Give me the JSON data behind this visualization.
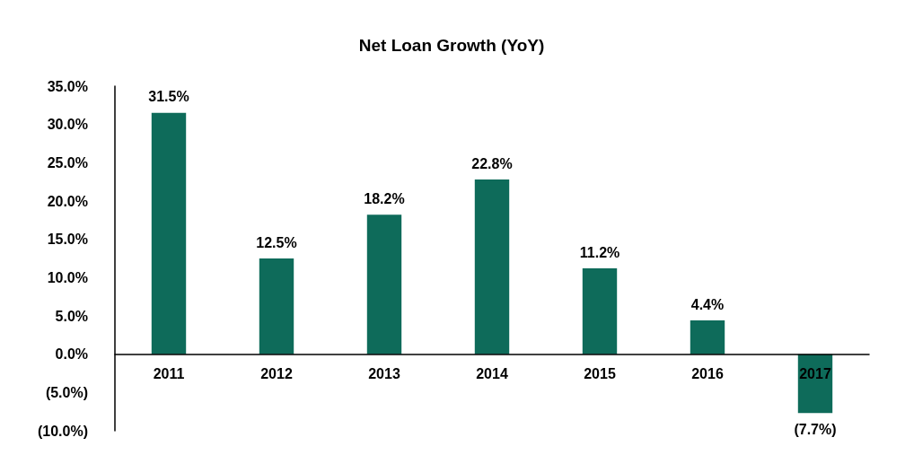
{
  "chart_data": {
    "type": "bar",
    "title": "Net Loan Growth (YoY)",
    "categories": [
      "2011",
      "2012",
      "2013",
      "2014",
      "2015",
      "2016",
      "2017"
    ],
    "values": [
      31.5,
      12.5,
      18.2,
      22.8,
      11.2,
      4.4,
      -7.7
    ],
    "value_labels": [
      "31.5%",
      "12.5%",
      "18.2%",
      "22.8%",
      "11.2%",
      "4.4%",
      "(7.7%)"
    ],
    "color": "#0e6b5a",
    "ylim": [
      -10,
      35
    ],
    "yticks": [
      {
        "value": -10,
        "label": "(10.0%)"
      },
      {
        "value": -5,
        "label": "(5.0%)"
      },
      {
        "value": 0,
        "label": "0.0%"
      },
      {
        "value": 5,
        "label": "5.0%"
      },
      {
        "value": 10,
        "label": "10.0%"
      },
      {
        "value": 15,
        "label": "15.0%"
      },
      {
        "value": 20,
        "label": "20.0%"
      },
      {
        "value": 25,
        "label": "25.0%"
      },
      {
        "value": 30,
        "label": "30.0%"
      },
      {
        "value": 35,
        "label": "35.0%"
      }
    ],
    "grid": false
  }
}
